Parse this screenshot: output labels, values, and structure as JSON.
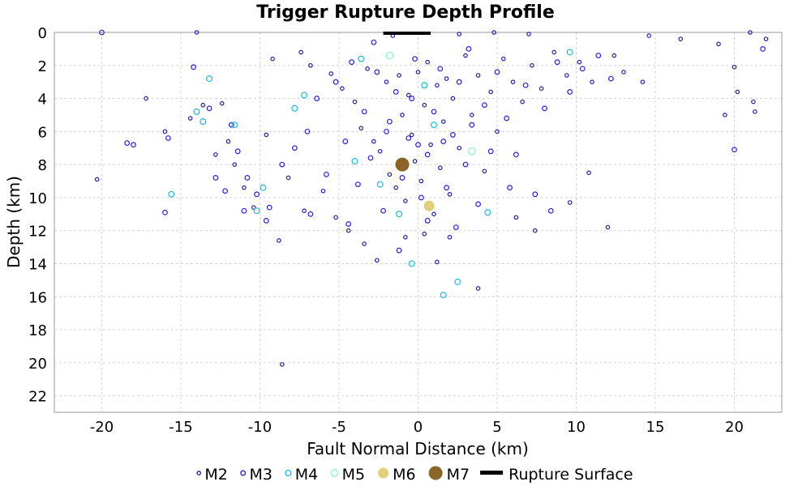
{
  "chart_data": {
    "type": "scatter",
    "title": "Trigger Rupture Depth Profile",
    "xlabel": "Fault Normal Distance (km)",
    "ylabel": "Depth (km)",
    "xlim": [
      -23,
      23
    ],
    "ylim": [
      23,
      0
    ],
    "x_ticks": [
      -20,
      -15,
      -10,
      -5,
      0,
      5,
      10,
      15,
      20
    ],
    "y_ticks": [
      0,
      2,
      4,
      6,
      8,
      10,
      12,
      14,
      16,
      18,
      20,
      22
    ],
    "grid": true,
    "legend_position": "bottom",
    "legend": [
      {
        "label": "M2",
        "color": "#1f1f9a",
        "style": "hollow-small"
      },
      {
        "label": "M3",
        "color": "#2a1fd6",
        "style": "hollow-medium"
      },
      {
        "label": "M4",
        "color": "#1fb8d6",
        "style": "hollow-large"
      },
      {
        "label": "M5",
        "color": "#8ff0c8",
        "style": "hollow-xlarge"
      },
      {
        "label": "M6",
        "color": "#e3cf7a",
        "style": "filled"
      },
      {
        "label": "M7",
        "color": "#8a6428",
        "style": "filled"
      },
      {
        "label": "Rupture Surface",
        "color": "#000000",
        "style": "line"
      }
    ],
    "rupture_surface": {
      "x": [
        -2.2,
        0.8
      ],
      "y": [
        0,
        0
      ]
    },
    "series": [
      {
        "name": "M2",
        "points": [
          [
            -14.0,
            0.0
          ],
          [
            -9.2,
            1.6
          ],
          [
            -7.4,
            1.2
          ],
          [
            -6.8,
            2.0
          ],
          [
            -5.5,
            2.5
          ],
          [
            -4.8,
            3.4
          ],
          [
            -4.0,
            4.2
          ],
          [
            -3.6,
            5.8
          ],
          [
            -3.2,
            2.2
          ],
          [
            -2.8,
            6.6
          ],
          [
            -2.4,
            7.2
          ],
          [
            -2.0,
            3.0
          ],
          [
            -1.8,
            8.6
          ],
          [
            -1.4,
            9.4
          ],
          [
            -1.2,
            2.6
          ],
          [
            -1.0,
            5.0
          ],
          [
            -0.8,
            10.2
          ],
          [
            -0.6,
            3.8
          ],
          [
            -0.4,
            6.2
          ],
          [
            -0.2,
            7.8
          ],
          [
            0.0,
            2.4
          ],
          [
            0.2,
            9.0
          ],
          [
            0.4,
            4.4
          ],
          [
            0.6,
            1.8
          ],
          [
            0.8,
            6.8
          ],
          [
            1.0,
            11.0
          ],
          [
            1.2,
            3.2
          ],
          [
            1.4,
            8.2
          ],
          [
            1.6,
            5.4
          ],
          [
            1.8,
            2.8
          ],
          [
            2.0,
            9.8
          ],
          [
            2.2,
            4.0
          ],
          [
            2.6,
            7.0
          ],
          [
            3.0,
            1.4
          ],
          [
            3.4,
            5.0
          ],
          [
            3.8,
            2.6
          ],
          [
            4.2,
            8.4
          ],
          [
            4.6,
            3.6
          ],
          [
            5.0,
            6.0
          ],
          [
            5.4,
            1.6
          ],
          [
            6.0,
            3.0
          ],
          [
            6.6,
            4.2
          ],
          [
            7.2,
            2.0
          ],
          [
            7.8,
            3.4
          ],
          [
            8.6,
            1.2
          ],
          [
            9.4,
            2.6
          ],
          [
            10.2,
            1.8
          ],
          [
            11.0,
            3.0
          ],
          [
            12.4,
            1.4
          ],
          [
            13.0,
            2.4
          ],
          [
            14.2,
            3.0
          ],
          [
            14.6,
            0.2
          ],
          [
            16.6,
            0.4
          ],
          [
            19.0,
            0.7
          ],
          [
            19.4,
            5.0
          ],
          [
            20.0,
            2.1
          ],
          [
            20.2,
            3.6
          ],
          [
            21.0,
            0.0
          ],
          [
            21.2,
            4.2
          ],
          [
            21.3,
            4.8
          ],
          [
            22.0,
            0.4
          ],
          [
            -17.2,
            4.0
          ],
          [
            -16.0,
            6.0
          ],
          [
            -20.3,
            8.9
          ],
          [
            -12.8,
            7.4
          ],
          [
            -12.0,
            6.6
          ],
          [
            -11.6,
            8.0
          ],
          [
            -11.0,
            9.4
          ],
          [
            -10.4,
            10.6
          ],
          [
            -9.6,
            6.2
          ],
          [
            -8.8,
            12.6
          ],
          [
            -8.2,
            8.8
          ],
          [
            -7.2,
            10.8
          ],
          [
            -6.0,
            9.6
          ],
          [
            -5.2,
            11.2
          ],
          [
            -4.4,
            12.0
          ],
          [
            -3.4,
            12.8
          ],
          [
            -2.6,
            13.8
          ],
          [
            -0.8,
            12.4
          ],
          [
            0.4,
            12.2
          ],
          [
            1.2,
            13.9
          ],
          [
            2.0,
            12.4
          ],
          [
            3.8,
            15.5
          ],
          [
            -8.6,
            20.1
          ],
          [
            6.2,
            11.2
          ],
          [
            7.4,
            12.0
          ],
          [
            9.6,
            10.3
          ],
          [
            10.8,
            8.5
          ],
          [
            12.0,
            11.8
          ],
          [
            -13.6,
            4.4
          ],
          [
            -12.4,
            4.3
          ],
          [
            -14.4,
            5.2
          ],
          [
            -1.6,
            0.2
          ],
          [
            2.6,
            0.1
          ],
          [
            4.8,
            0.0
          ],
          [
            7.0,
            0.1
          ]
        ]
      },
      {
        "name": "M3",
        "points": [
          [
            -14.2,
            2.1
          ],
          [
            -13.2,
            4.6
          ],
          [
            -11.8,
            5.6
          ],
          [
            -11.4,
            7.2
          ],
          [
            -10.8,
            8.8
          ],
          [
            -10.2,
            9.8
          ],
          [
            -9.4,
            10.6
          ],
          [
            -8.6,
            8.0
          ],
          [
            -7.8,
            7.0
          ],
          [
            -7.0,
            6.0
          ],
          [
            -6.4,
            4.0
          ],
          [
            -5.8,
            8.6
          ],
          [
            -5.2,
            3.0
          ],
          [
            -4.6,
            6.6
          ],
          [
            -4.2,
            1.8
          ],
          [
            -3.8,
            9.2
          ],
          [
            -3.4,
            4.8
          ],
          [
            -3.0,
            7.6
          ],
          [
            -2.6,
            2.4
          ],
          [
            -2.2,
            10.8
          ],
          [
            -1.8,
            5.4
          ],
          [
            -1.4,
            3.6
          ],
          [
            -1.0,
            8.8
          ],
          [
            -0.6,
            6.4
          ],
          [
            -0.2,
            1.6
          ],
          [
            0.2,
            10.0
          ],
          [
            0.6,
            7.4
          ],
          [
            1.0,
            4.8
          ],
          [
            1.4,
            2.2
          ],
          [
            1.8,
            9.4
          ],
          [
            2.2,
            6.2
          ],
          [
            2.6,
            3.0
          ],
          [
            3.0,
            8.0
          ],
          [
            3.4,
            5.6
          ],
          [
            3.8,
            10.4
          ],
          [
            4.2,
            4.4
          ],
          [
            4.6,
            7.2
          ],
          [
            5.0,
            2.4
          ],
          [
            5.6,
            5.2
          ],
          [
            6.2,
            7.4
          ],
          [
            6.8,
            3.2
          ],
          [
            7.4,
            9.8
          ],
          [
            8.0,
            4.6
          ],
          [
            8.8,
            1.8
          ],
          [
            9.6,
            3.6
          ],
          [
            10.4,
            2.2
          ],
          [
            11.4,
            1.4
          ],
          [
            12.2,
            2.8
          ],
          [
            -18.4,
            6.7
          ],
          [
            -18.0,
            6.8
          ],
          [
            -16.0,
            10.9
          ],
          [
            -12.8,
            8.8
          ],
          [
            -12.2,
            9.6
          ],
          [
            -11.0,
            10.8
          ],
          [
            -9.6,
            11.4
          ],
          [
            -6.8,
            11.0
          ],
          [
            -4.4,
            11.6
          ],
          [
            -1.2,
            13.2
          ],
          [
            0.6,
            11.4
          ],
          [
            2.4,
            11.8
          ],
          [
            8.4,
            10.8
          ],
          [
            5.8,
            9.4
          ],
          [
            -0.4,
            4.0
          ],
          [
            0.0,
            6.8
          ],
          [
            -2.0,
            6.0
          ],
          [
            1.6,
            6.6
          ],
          [
            -20.0,
            0.0
          ],
          [
            20.0,
            7.1
          ],
          [
            21.8,
            1.0
          ],
          [
            -15.8,
            6.4
          ],
          [
            3.2,
            1.0
          ],
          [
            -2.8,
            0.6
          ]
        ]
      },
      {
        "name": "M4",
        "points": [
          [
            -15.6,
            9.8
          ],
          [
            -14.0,
            4.8
          ],
          [
            -13.6,
            5.4
          ],
          [
            -13.2,
            2.8
          ],
          [
            -11.6,
            5.6
          ],
          [
            -10.2,
            10.8
          ],
          [
            -9.8,
            9.4
          ],
          [
            -7.8,
            4.6
          ],
          [
            -7.2,
            3.8
          ],
          [
            -3.6,
            1.6
          ],
          [
            -1.2,
            11.0
          ],
          [
            -0.4,
            14.0
          ],
          [
            1.0,
            5.6
          ],
          [
            1.6,
            15.9
          ],
          [
            2.5,
            15.1
          ],
          [
            4.4,
            10.9
          ],
          [
            9.6,
            1.2
          ],
          [
            -4.0,
            7.8
          ],
          [
            0.4,
            3.2
          ],
          [
            -2.4,
            9.2
          ]
        ]
      },
      {
        "name": "M5",
        "points": [
          [
            -1.8,
            1.4
          ],
          [
            3.4,
            7.2
          ]
        ]
      },
      {
        "name": "M6",
        "points": [
          [
            0.7,
            10.5
          ]
        ]
      },
      {
        "name": "M7",
        "points": [
          [
            -1.0,
            8.0
          ]
        ]
      }
    ]
  }
}
